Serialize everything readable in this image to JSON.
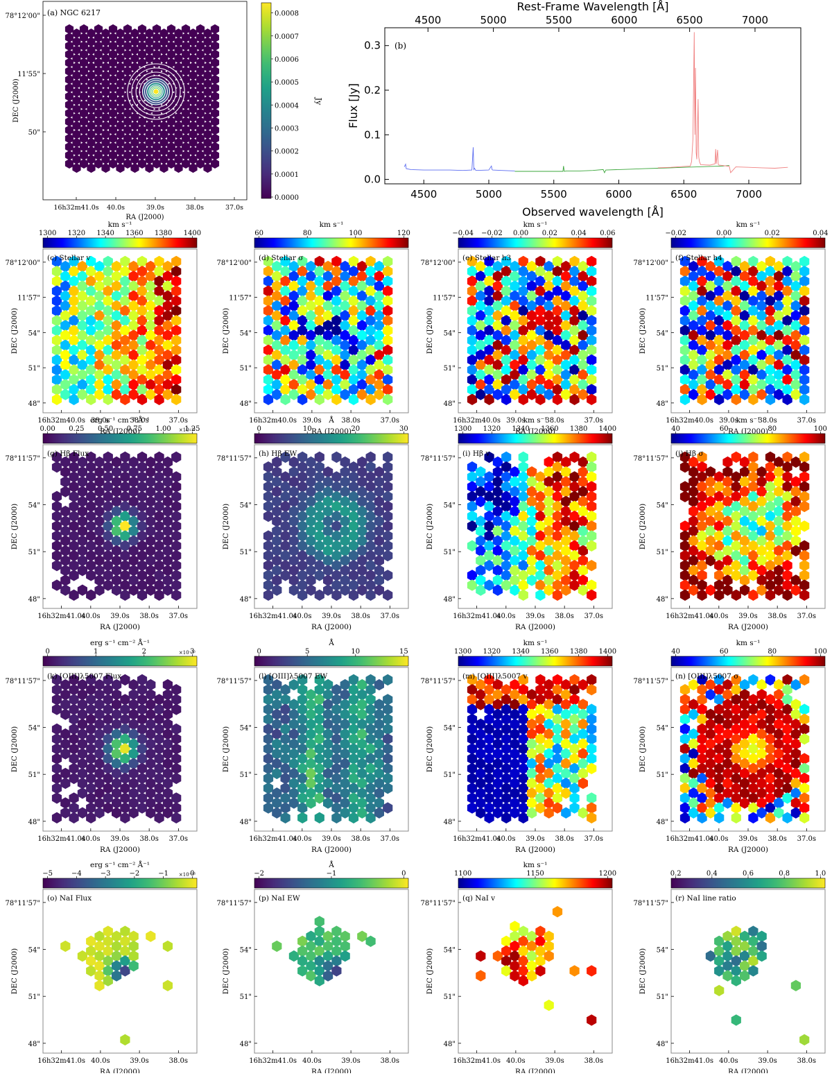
{
  "chart_data": [
    {
      "type": "heatmap",
      "panel": "a",
      "title": "(a) NGC 6217",
      "xlabel": "RA (J2000)",
      "ylabel": "DEC (J2000)",
      "x_ticks": [
        "16h32m41.0s",
        "40.0s",
        "39.0s",
        "38.0s",
        "37.0s"
      ],
      "y_ticks": [
        "78°12'00\"",
        "11'55\"",
        "50\""
      ],
      "colorbar": {
        "label": "Jy",
        "range": [
          0.0,
          0.00085
        ],
        "ticks": [
          "0.0000",
          "0.0001",
          "0.0002",
          "0.0003",
          "0.0004",
          "0.0005",
          "0.0006",
          "0.0007",
          "0.0008"
        ],
        "cmap": "viridis"
      },
      "overlay": "white contours centred on nucleus"
    },
    {
      "type": "line",
      "panel": "b",
      "title": "(b)",
      "xlabel": "Observed wavelength [Å]",
      "x2label": "Rest-Frame Wavelength [Å]",
      "ylabel": "Flux [Jy]",
      "xlim": [
        4200,
        7400
      ],
      "x2lim": [
        4170,
        7350
      ],
      "ylim": [
        -0.01,
        0.34
      ],
      "x_ticks": [
        4500,
        5000,
        5500,
        6000,
        6500,
        7000
      ],
      "x2_ticks": [
        4500,
        5000,
        5500,
        6000,
        6500,
        7000
      ],
      "y_ticks": [
        0.0,
        0.1,
        0.2,
        0.3
      ],
      "series": [
        {
          "name": "blue",
          "color": "#5b6cf0",
          "x": [
            4350,
            4360,
            4365,
            4400,
            4500,
            4600,
            4700,
            4800,
            4870,
            4880,
            4885,
            4890,
            4900,
            5000,
            5020,
            5025,
            5030,
            5100,
            5200
          ],
          "y": [
            0.028,
            0.034,
            0.024,
            0.022,
            0.021,
            0.021,
            0.021,
            0.02,
            0.021,
            0.072,
            0.022,
            0.025,
            0.02,
            0.021,
            0.03,
            0.022,
            0.021,
            0.02,
            0.019
          ]
        },
        {
          "name": "green",
          "color": "#3aa63a",
          "x": [
            5200,
            5300,
            5400,
            5500,
            5570,
            5575,
            5580,
            5600,
            5700,
            5800,
            5880,
            5890,
            5900,
            6000,
            6100,
            6200,
            6300,
            6400,
            6500,
            6600,
            6700,
            6800,
            6850
          ],
          "y": [
            0.018,
            0.018,
            0.018,
            0.018,
            0.018,
            0.03,
            0.018,
            0.019,
            0.019,
            0.02,
            0.022,
            0.015,
            0.021,
            0.022,
            0.023,
            0.024,
            0.025,
            0.026,
            0.027,
            0.028,
            0.029,
            0.03,
            0.031
          ]
        },
        {
          "name": "red",
          "color": "#f08080",
          "x": [
            6300,
            6400,
            6500,
            6550,
            6560,
            6570,
            6580,
            6585,
            6590,
            6595,
            6600,
            6610,
            6615,
            6620,
            6630,
            6700,
            6740,
            6745,
            6750,
            6760,
            6765,
            6770,
            6800,
            6850,
            6860,
            6900,
            7000,
            7100,
            7200,
            7300
          ],
          "y": [
            0.026,
            0.027,
            0.029,
            0.03,
            0.04,
            0.09,
            0.33,
            0.1,
            0.25,
            0.06,
            0.045,
            0.18,
            0.05,
            0.04,
            0.033,
            0.032,
            0.035,
            0.068,
            0.035,
            0.066,
            0.034,
            0.032,
            0.031,
            0.029,
            0.015,
            0.028,
            0.027,
            0.026,
            0.025,
            0.027
          ]
        }
      ]
    },
    {
      "type": "heatmap",
      "panel": "c",
      "title": "(c) Stellar v",
      "unit": "km s⁻¹",
      "cmap": "jet",
      "clim": [
        1300,
        1410
      ],
      "ticks": [
        "1300",
        "1320",
        "1340",
        "1360",
        "1380",
        "1400"
      ],
      "pattern": "velocity gradient, redshifted to the right"
    },
    {
      "type": "heatmap",
      "panel": "d",
      "title": "(d) Stellar σ",
      "unit": "km s⁻¹",
      "cmap": "jet",
      "clim": [
        50,
        125
      ],
      "ticks": [
        "60",
        "80",
        "100",
        "120"
      ],
      "pattern": "low dispersion centre"
    },
    {
      "type": "heatmap",
      "panel": "e",
      "title": "(e) Stellar h3",
      "unit": "km s⁻¹",
      "cmap": "jet",
      "clim": [
        -0.045,
        0.07
      ],
      "ticks": [
        "−0.04",
        "−0.02",
        "0.00",
        "0.02",
        "0.04",
        "0.06"
      ],
      "pattern": "noisy"
    },
    {
      "type": "heatmap",
      "panel": "f",
      "title": "(f) Stellar h4",
      "unit": "km s⁻¹",
      "cmap": "jet",
      "clim": [
        -0.035,
        0.05
      ],
      "ticks": [
        "−0.02",
        "0.00",
        "0.02",
        "0.04"
      ],
      "pattern": "noisy"
    },
    {
      "type": "heatmap",
      "panel": "g",
      "title": "(g) Hβ Flux",
      "unit": "erg s⁻¹ cm⁻² Å⁻¹",
      "exponent": "×10⁻¹⁴",
      "cmap": "viridis",
      "clim": [
        0,
        1.3
      ],
      "ticks": [
        "0.00",
        "0.25",
        "0.50",
        "0.75",
        "1.00",
        "1.25"
      ],
      "pattern": "central peak"
    },
    {
      "type": "heatmap",
      "panel": "h",
      "title": "(h) Hβ EW",
      "unit": "Å",
      "cmap": "viridis",
      "clim": [
        0,
        37
      ],
      "ticks": [
        "0",
        "10",
        "20",
        "30"
      ],
      "pattern": "ring"
    },
    {
      "type": "heatmap",
      "panel": "i",
      "title": "(i) Hβ v",
      "unit": "km s⁻¹",
      "cmap": "jet",
      "clim": [
        1300,
        1405
      ],
      "ticks": [
        "1300",
        "1320",
        "1340",
        "1360",
        "1380",
        "1400"
      ],
      "pattern": "rotation"
    },
    {
      "type": "heatmap",
      "panel": "j",
      "title": "(j) Hβ σ",
      "unit": "km s⁻¹",
      "cmap": "jet",
      "clim": [
        25,
        110
      ],
      "ticks": [
        "40",
        "60",
        "80",
        "100"
      ],
      "pattern": "high dispersion outskirts"
    },
    {
      "type": "heatmap",
      "panel": "k",
      "title": "(k) [OIII]λ5007 Flux",
      "unit": "erg s⁻¹ cm⁻² Å⁻¹",
      "exponent": "×10⁻¹⁵",
      "cmap": "viridis",
      "clim": [
        0,
        3.2
      ],
      "ticks": [
        "0",
        "1",
        "2",
        "3"
      ],
      "pattern": "central peak"
    },
    {
      "type": "heatmap",
      "panel": "l",
      "title": "(l) [OIII]λ5007 EW",
      "unit": "Å",
      "cmap": "viridis",
      "clim": [
        0,
        15
      ],
      "ticks": [
        "0",
        "5",
        "10",
        "15"
      ],
      "pattern": "patchy"
    },
    {
      "type": "heatmap",
      "panel": "m",
      "title": "(m) [OIII]λ5007 v",
      "unit": "km s⁻¹",
      "cmap": "jet",
      "clim": [
        1300,
        1405
      ],
      "ticks": [
        "1300",
        "1320",
        "1340",
        "1360",
        "1380",
        "1400"
      ],
      "pattern": "blue left, red top"
    },
    {
      "type": "heatmap",
      "panel": "n",
      "title": "(n) [OIII]λ5007 σ",
      "unit": "km s⁻¹",
      "cmap": "jet",
      "clim": [
        25,
        110
      ],
      "ticks": [
        "40",
        "60",
        "80",
        "100"
      ],
      "pattern": "broad central region"
    },
    {
      "type": "heatmap",
      "panel": "o",
      "title": "(o) NaI Flux",
      "unit": "erg s⁻¹ cm⁻² Å⁻¹",
      "exponent": "×10⁻¹⁶",
      "cmap": "viridis",
      "clim": [
        -5.8,
        0.2
      ],
      "ticks": [
        "−5",
        "−4",
        "−3",
        "−2",
        "−1",
        "0"
      ],
      "pattern": "sparse, absorption near centre"
    },
    {
      "type": "heatmap",
      "panel": "p",
      "title": "(p) NaI EW",
      "unit": "Å",
      "cmap": "viridis",
      "clim": [
        -2.7,
        0.8
      ],
      "ticks": [
        "−2",
        "−1",
        "0"
      ],
      "pattern": "sparse"
    },
    {
      "type": "heatmap",
      "panel": "q",
      "title": "(q) NaI v",
      "unit": "km s⁻¹",
      "cmap": "jet",
      "clim": [
        1080,
        1230
      ],
      "ticks": [
        "1100",
        "1150",
        "1200"
      ],
      "pattern": "sparse"
    },
    {
      "type": "heatmap",
      "panel": "r",
      "title": "(r) NaI line ratio",
      "unit": "",
      "cmap": "viridis",
      "clim": [
        0.05,
        1.0
      ],
      "ticks": [
        "0.2",
        "0.4",
        "0.6",
        "0.8",
        "1.0"
      ],
      "pattern": "sparse"
    }
  ],
  "axes_text": {
    "ra_label": "RA (J2000)",
    "dec_label": "DEC (J2000)",
    "ra_ticks_row2": [
      "16h32m40.0s",
      "39.0s",
      "38.0s",
      "37.0s"
    ],
    "dec_ticks_row2": [
      "78°12'00\"",
      "11'57\"",
      "54\"",
      "51\"",
      "48\""
    ],
    "ra_ticks_row3": [
      "16h32m41.0s",
      "40.0s",
      "39.0s",
      "38.0s",
      "37.0s"
    ],
    "dec_ticks_row3": [
      "78°11'57\"",
      "54\"",
      "51\"",
      "48\""
    ],
    "ra_ticks_row5": [
      "16h32m41.0s",
      "40.0s",
      "39.0s",
      "38.0s"
    ]
  }
}
